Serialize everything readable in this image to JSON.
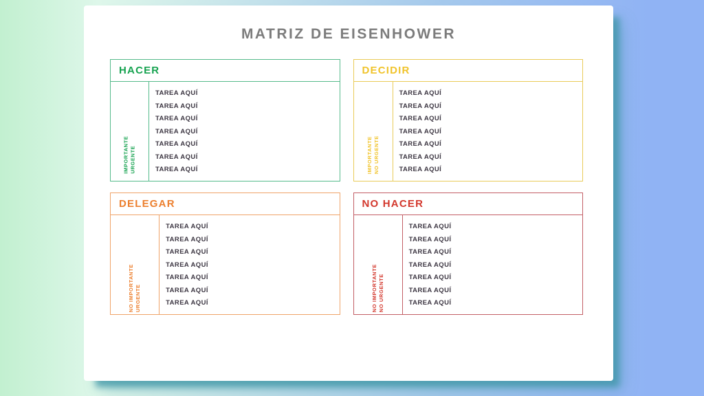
{
  "title": "MATRIZ DE EISENHOWER",
  "quadrants": [
    {
      "id": "hacer",
      "label": "HACER",
      "axis": {
        "line1": "IMPORTANTE",
        "line2": "URGENTE"
      },
      "color": "#15a24f",
      "border_color": "#55ba8b",
      "tasks": [
        "TAREA AQUÍ",
        "TAREA AQUÍ",
        "TAREA AQUÍ",
        "TAREA AQUÍ",
        "TAREA AQUÍ",
        "TAREA AQUÍ",
        "TAREA AQUÍ"
      ]
    },
    {
      "id": "decidir",
      "label": "DECIDIR",
      "axis": {
        "line1": "IMPORTANTE",
        "line2": "NO URGENTE"
      },
      "color": "#f0c32a",
      "border_color": "#e9cb58",
      "tasks": [
        "TAREA AQUÍ",
        "TAREA AQUÍ",
        "TAREA AQUÍ",
        "TAREA AQUÍ",
        "TAREA AQUÍ",
        "TAREA AQUÍ",
        "TAREA AQUÍ"
      ]
    },
    {
      "id": "delegar",
      "label": "DELEGAR",
      "axis": {
        "line1": "NO IMPORTANTE",
        "line2": "URGENTE"
      },
      "color": "#ec7f2e",
      "border_color": "#efa368",
      "tasks": [
        "TAREA AQUÍ",
        "TAREA AQUÍ",
        "TAREA AQUÍ",
        "TAREA AQUÍ",
        "TAREA AQUÍ",
        "TAREA AQUÍ",
        "TAREA AQUÍ"
      ]
    },
    {
      "id": "no-hacer",
      "label": "NO HACER",
      "axis": {
        "line1": "NO IMPORTANTE",
        "line2": "NO URGENTE"
      },
      "color": "#d3372c",
      "border_color": "#c25d64",
      "tasks": [
        "TAREA AQUÍ",
        "TAREA AQUÍ",
        "TAREA AQUÍ",
        "TAREA AQUÍ",
        "TAREA AQUÍ",
        "TAREA AQUÍ",
        "TAREA AQUÍ"
      ]
    }
  ],
  "colors": {
    "title_text": "#7c7c7c",
    "task_text": "#3c3642",
    "card_background": "#ffffff",
    "background_left": "#c2f0d0",
    "background_right": "#90b3f4",
    "card_shadow": "rgba(62,150,166,0.75)"
  }
}
